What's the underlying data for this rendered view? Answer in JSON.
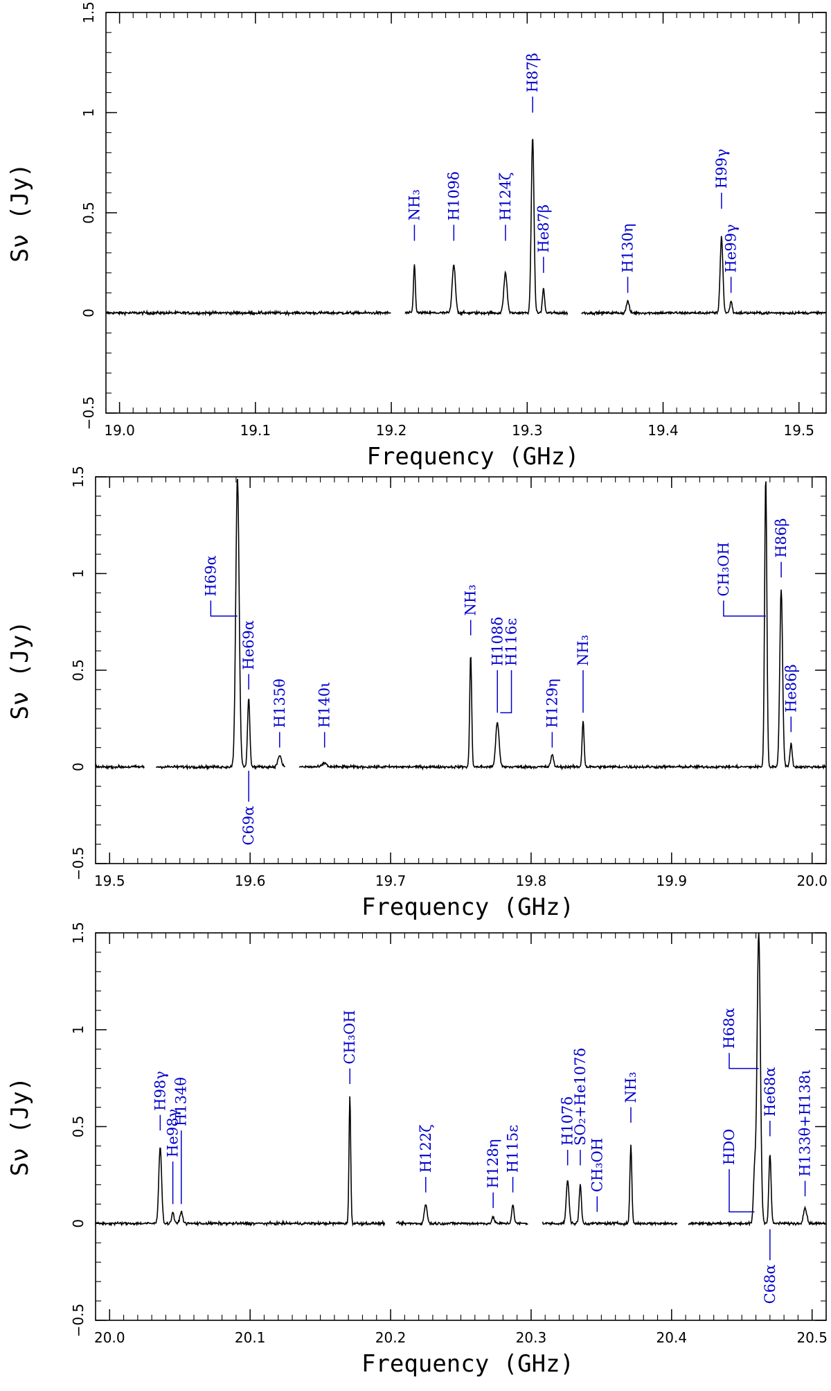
{
  "colors": {
    "frame": "#000000",
    "spectrum": "#000000",
    "annotation": "#0000cc"
  },
  "chart_data": [
    {
      "type": "line",
      "xlabel": "Frequency (GHz)",
      "ylabel": "Sν (Jy)",
      "xlim": [
        18.99,
        19.52
      ],
      "ylim": [
        -0.5,
        1.5
      ],
      "xticks": [
        "19.0",
        "19.1",
        "19.2",
        "19.3",
        "19.4",
        "19.5"
      ],
      "yticks": [
        "−0.5",
        "0",
        "0.5",
        "1",
        "1.5"
      ],
      "coverage": [
        [
          18.99,
          19.2
        ],
        [
          19.21,
          19.33
        ],
        [
          19.34,
          19.52
        ]
      ],
      "peaks": [
        {
          "x": 19.217,
          "y": 0.24,
          "w": 0.0007
        },
        {
          "x": 19.246,
          "y": 0.24,
          "w": 0.0012
        },
        {
          "x": 19.284,
          "y": 0.2,
          "w": 0.0012
        },
        {
          "x": 19.304,
          "y": 0.88,
          "w": 0.001
        },
        {
          "x": 19.312,
          "y": 0.12,
          "w": 0.0008
        },
        {
          "x": 19.374,
          "y": 0.06,
          "w": 0.001
        },
        {
          "x": 19.443,
          "y": 0.38,
          "w": 0.001
        },
        {
          "x": 19.45,
          "y": 0.06,
          "w": 0.0008
        }
      ],
      "labels": [
        {
          "text": "NH₃",
          "x": 19.217,
          "tip": 0.36,
          "len": 0.08
        },
        {
          "text": "H109δ",
          "x": 19.246,
          "tip": 0.36,
          "len": 0.08
        },
        {
          "text": "H124ζ",
          "x": 19.284,
          "tip": 0.36,
          "len": 0.08
        },
        {
          "text": "H87β",
          "x": 19.304,
          "tip": 1.0,
          "len": 0.08
        },
        {
          "text": "He87β",
          "x": 19.312,
          "tip": 0.2,
          "len": 0.08
        },
        {
          "text": "H130η",
          "x": 19.374,
          "tip": 0.1,
          "len": 0.08
        },
        {
          "text": "H99γ",
          "x": 19.443,
          "tip": 0.52,
          "len": 0.08
        },
        {
          "text": "He99γ",
          "x": 19.45,
          "tip": 0.1,
          "len": 0.08
        }
      ]
    },
    {
      "type": "line",
      "xlabel": "Frequency (GHz)",
      "ylabel": "Sν (Jy)",
      "xlim": [
        19.49,
        20.01
      ],
      "ylim": [
        -0.5,
        1.5
      ],
      "xticks": [
        "19.5",
        "19.6",
        "19.7",
        "19.8",
        "19.9",
        "20.0"
      ],
      "yticks": [
        "−0.5",
        "0",
        "0.5",
        "1",
        "1.5"
      ],
      "coverage": [
        [
          19.49,
          19.525
        ],
        [
          19.533,
          19.625
        ],
        [
          19.635,
          20.01
        ]
      ],
      "peaks": [
        {
          "x": 19.591,
          "y": 1.5,
          "w": 0.0012
        },
        {
          "x": 19.599,
          "y": 0.36,
          "w": 0.0008
        },
        {
          "x": 19.621,
          "y": 0.06,
          "w": 0.0012
        },
        {
          "x": 19.653,
          "y": 0.02,
          "w": 0.0015
        },
        {
          "x": 19.757,
          "y": 0.58,
          "w": 0.0007
        },
        {
          "x": 19.776,
          "y": 0.23,
          "w": 0.0012
        },
        {
          "x": 19.815,
          "y": 0.06,
          "w": 0.001
        },
        {
          "x": 19.837,
          "y": 0.24,
          "w": 0.0007
        },
        {
          "x": 19.967,
          "y": 1.5,
          "w": 0.0008
        },
        {
          "x": 19.978,
          "y": 0.92,
          "w": 0.001
        },
        {
          "x": 19.985,
          "y": 0.12,
          "w": 0.0008
        }
      ],
      "labels": [
        {
          "text": "H69α",
          "x": 19.591,
          "tip": 0.78,
          "len": 0.08,
          "dx": -0.019
        },
        {
          "text": "He69α",
          "x": 19.599,
          "tip": 0.4,
          "len": 0.08
        },
        {
          "text": "C69α",
          "x": 19.599,
          "tip": -0.02,
          "len": 0.16,
          "below": true
        },
        {
          "text": "H135θ",
          "x": 19.621,
          "tip": 0.1,
          "len": 0.08
        },
        {
          "text": "H140ι",
          "x": 19.653,
          "tip": 0.1,
          "len": 0.08
        },
        {
          "text": "NH₃",
          "x": 19.757,
          "tip": 0.68,
          "len": 0.08
        },
        {
          "text": "H108δ",
          "x": 19.776,
          "tip": 0.28,
          "len": 0.22
        },
        {
          "text": "H116ε",
          "x": 19.778,
          "tip": 0.28,
          "len": 0.22,
          "dx": 0.008
        },
        {
          "text": "H129η",
          "x": 19.815,
          "tip": 0.1,
          "len": 0.08
        },
        {
          "text": "NH₃",
          "x": 19.837,
          "tip": 0.28,
          "len": 0.22
        },
        {
          "text": "CH₃OH",
          "x": 19.967,
          "tip": 0.78,
          "len": 0.08,
          "dx": -0.03
        },
        {
          "text": "H86β",
          "x": 19.978,
          "tip": 0.98,
          "len": 0.08
        },
        {
          "text": "He86β",
          "x": 19.985,
          "tip": 0.18,
          "len": 0.08
        }
      ]
    },
    {
      "type": "line",
      "xlabel": "Frequency (GHz)",
      "ylabel": "Sν (Jy)",
      "xlim": [
        19.99,
        20.51
      ],
      "ylim": [
        -0.5,
        1.5
      ],
      "xticks": [
        "20.0",
        "20.1",
        "20.2",
        "20.3",
        "20.4",
        "20.5"
      ],
      "yticks": [
        "−0.5",
        "0",
        "0.5",
        "1",
        "1.5"
      ],
      "coverage": [
        [
          19.99,
          20.196
        ],
        [
          20.204,
          20.298
        ],
        [
          20.308,
          20.404
        ],
        [
          20.412,
          20.51
        ]
      ],
      "peaks": [
        {
          "x": 20.036,
          "y": 0.4,
          "w": 0.001
        },
        {
          "x": 20.045,
          "y": 0.06,
          "w": 0.0008
        },
        {
          "x": 20.051,
          "y": 0.06,
          "w": 0.001
        },
        {
          "x": 20.171,
          "y": 0.66,
          "w": 0.0006
        },
        {
          "x": 20.225,
          "y": 0.1,
          "w": 0.001
        },
        {
          "x": 20.273,
          "y": 0.03,
          "w": 0.001
        },
        {
          "x": 20.287,
          "y": 0.1,
          "w": 0.0008
        },
        {
          "x": 20.326,
          "y": 0.22,
          "w": 0.001
        },
        {
          "x": 20.335,
          "y": 0.2,
          "w": 0.0008
        },
        {
          "x": 20.371,
          "y": 0.4,
          "w": 0.0007
        },
        {
          "x": 20.459,
          "y": 0.25,
          "w": 0.0008
        },
        {
          "x": 20.462,
          "y": 1.5,
          "w": 0.0012
        },
        {
          "x": 20.47,
          "y": 0.36,
          "w": 0.0008
        },
        {
          "x": 20.495,
          "y": 0.08,
          "w": 0.0012
        }
      ],
      "labels": [
        {
          "text": "H98γ",
          "x": 20.036,
          "tip": 0.48,
          "len": 0.08
        },
        {
          "text": "He98γ",
          "x": 20.045,
          "tip": 0.1,
          "len": 0.22
        },
        {
          "text": "H134θ",
          "x": 20.051,
          "tip": 0.1,
          "len": 0.38
        },
        {
          "text": "CH₃OH",
          "x": 20.171,
          "tip": 0.72,
          "len": 0.08
        },
        {
          "text": "H122ζ",
          "x": 20.225,
          "tip": 0.16,
          "len": 0.08
        },
        {
          "text": "H128η",
          "x": 20.273,
          "tip": 0.08,
          "len": 0.08
        },
        {
          "text": "H115ε",
          "x": 20.287,
          "tip": 0.16,
          "len": 0.08
        },
        {
          "text": "H107δ",
          "x": 20.326,
          "tip": 0.3,
          "len": 0.08
        },
        {
          "text": "SO₂+He107δ",
          "x": 20.335,
          "tip": 0.3,
          "len": 0.08
        },
        {
          "text": "CH₃OH",
          "x": 20.347,
          "tip": 0.06,
          "len": 0.08
        },
        {
          "text": "NH₃",
          "x": 20.371,
          "tip": 0.52,
          "len": 0.08
        },
        {
          "text": "HDO",
          "x": 20.459,
          "tip": 0.06,
          "len": 0.22,
          "dx": -0.018
        },
        {
          "text": "H68α",
          "x": 20.462,
          "tip": 0.8,
          "len": 0.08,
          "dx": -0.021
        },
        {
          "text": "He68α",
          "x": 20.47,
          "tip": 0.45,
          "len": 0.08
        },
        {
          "text": "C68α",
          "x": 20.47,
          "tip": -0.03,
          "len": 0.16,
          "below": true
        },
        {
          "text": "H133θ+H138ι",
          "x": 20.495,
          "tip": 0.14,
          "len": 0.08
        }
      ]
    }
  ]
}
